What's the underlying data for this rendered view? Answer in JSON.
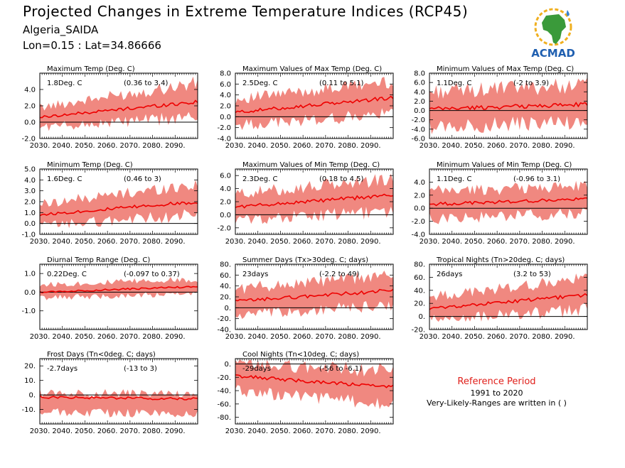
{
  "header": {
    "title": "Projected Changes in Extreme Temperature Indices (RCP45)",
    "station": "Algeria_SAIDA",
    "coords": "Lon=0.15 : Lat=34.86666"
  },
  "logo": {
    "text": "ACMAD",
    "icon": "africa-map-logo-icon"
  },
  "reference": {
    "title": "Reference Period",
    "years": "1991 to 2020",
    "note": "Very-Likely-Ranges are written in ( )"
  },
  "colors": {
    "band": "#f08880",
    "line": "#ee0000",
    "zero": "#000000",
    "ref_title": "#e0201b"
  },
  "chart_data": [
    {
      "id": "txx-mean",
      "type": "area",
      "title": "Maximum Temp (Deg. C)",
      "change": "1.8Deg. C",
      "range": "(0.36 to 3.4)",
      "x_range": [
        2030,
        2100
      ],
      "x_ticks": [
        "2030.",
        "2040.",
        "2050.",
        "2060.",
        "2070.",
        "2080.",
        "2090."
      ],
      "ylim": [
        -2,
        6
      ],
      "y_ticks": [
        "-2.0",
        "0.0",
        "2.0",
        "4.0"
      ],
      "mean_start": 0.6,
      "mean_end": 2.5,
      "band_start": [
        -0.6,
        1.8
      ],
      "band_end": [
        0.6,
        4.8
      ]
    },
    {
      "id": "txx",
      "type": "area",
      "title": "Maximum Values of Max Temp (Deg. C)",
      "change": "2.5Deg. C",
      "range": "(0.11 to 5.1)",
      "x_range": [
        2030,
        2100
      ],
      "x_ticks": [
        "2030.",
        "2040.",
        "2050.",
        "2060.",
        "2070.",
        "2080.",
        "2090."
      ],
      "ylim": [
        -4,
        8
      ],
      "y_ticks": [
        "-4.0",
        "-2.0",
        "0.0",
        "2.0",
        "4.0",
        "6.0",
        "8.0"
      ],
      "mean_start": 0.8,
      "mean_end": 3.5,
      "band_start": [
        -1.6,
        3.2
      ],
      "band_end": [
        0.5,
        6.5
      ]
    },
    {
      "id": "txn",
      "type": "area",
      "title": "Minimum Values of Max Temp (Deg. C)",
      "change": "1.1Deg. C",
      "range": "(-2 to 3.9)",
      "x_range": [
        2030,
        2100
      ],
      "x_ticks": [
        "2030.",
        "2040.",
        "2050.",
        "2060.",
        "2070.",
        "2080.",
        "2090."
      ],
      "ylim": [
        -6,
        8
      ],
      "y_ticks": [
        "-6.0",
        "-4.0",
        "-2.0",
        "0.0",
        "2.0",
        "4.0",
        "6.0",
        "8.0"
      ],
      "mean_start": 0.3,
      "mean_end": 1.3,
      "band_start": [
        -3.5,
        4.0
      ],
      "band_end": [
        -2.5,
        5.5
      ]
    },
    {
      "id": "tn-mean",
      "type": "area",
      "title": "Minimum Temp (Deg. C)",
      "change": "1.6Deg. C",
      "range": "(0.46 to 3)",
      "x_range": [
        2030,
        2100
      ],
      "x_ticks": [
        "2030.",
        "2040.",
        "2050.",
        "2060.",
        "2070.",
        "2080.",
        "2090."
      ],
      "ylim": [
        -1,
        5
      ],
      "y_ticks": [
        "-1.0",
        "0.0",
        "1.0",
        "2.0",
        "3.0",
        "4.0",
        "5.0"
      ],
      "mean_start": 0.8,
      "mean_end": 2.0,
      "band_start": [
        -0.2,
        1.8
      ],
      "band_end": [
        0.8,
        3.6
      ]
    },
    {
      "id": "tnx",
      "type": "area",
      "title": "Maximum Values of Min Temp (Deg. C)",
      "change": "2.3Deg. C",
      "range": "(0.18 to 4.5)",
      "x_range": [
        2030,
        2100
      ],
      "x_ticks": [
        "2030.",
        "2040.",
        "2050.",
        "2060.",
        "2070.",
        "2080.",
        "2090."
      ],
      "ylim": [
        -3,
        7
      ],
      "y_ticks": [
        "-2.0",
        "0.0",
        "2.0",
        "4.0",
        "6.0"
      ],
      "mean_start": 1.2,
      "mean_end": 3.0,
      "band_start": [
        -0.8,
        3.2
      ],
      "band_end": [
        0.5,
        5.5
      ]
    },
    {
      "id": "tnn",
      "type": "area",
      "title": "Minimum Values of Min Temp (Deg. C)",
      "change": "1.1Deg. C",
      "range": "(-0.96 to 3.1)",
      "x_range": [
        2030,
        2100
      ],
      "x_ticks": [
        "2030.",
        "2040.",
        "2050.",
        "2060.",
        "2070.",
        "2080.",
        "2090."
      ],
      "ylim": [
        -4,
        6
      ],
      "y_ticks": [
        "-4.0",
        "-2.0",
        "0.0",
        "2.0",
        "4.0"
      ],
      "mean_start": 0.6,
      "mean_end": 1.4,
      "band_start": [
        -1.6,
        2.6
      ],
      "band_end": [
        -0.8,
        3.4
      ]
    },
    {
      "id": "dtr",
      "type": "area",
      "title": "Diurnal Temp Range (Deg. C)",
      "change": "0.22Deg. C",
      "range": "(-0.097 to 0.37)",
      "x_range": [
        2030,
        2100
      ],
      "x_ticks": [
        "2030.",
        "2040.",
        "2050.",
        "2060.",
        "2070.",
        "2080.",
        "2090."
      ],
      "ylim": [
        -2,
        1.5
      ],
      "y_ticks": [
        "-1.0",
        "0.0",
        "1.0"
      ],
      "mean_start": 0.0,
      "mean_end": 0.3,
      "band_start": [
        -0.3,
        0.4
      ],
      "band_end": [
        -0.1,
        0.7
      ]
    },
    {
      "id": "su",
      "type": "area",
      "title": "Summer Days (Tx>30deg. C; days)",
      "change": "23days",
      "range": "(-2.2 to 49)",
      "x_range": [
        2030,
        2100
      ],
      "x_ticks": [
        "2030.",
        "2040.",
        "2050.",
        "2060.",
        "2070.",
        "2080.",
        "2090."
      ],
      "ylim": [
        -40,
        80
      ],
      "y_ticks": [
        "-40.",
        "-20.",
        "0.",
        "20.",
        "40.",
        "60.",
        "80."
      ],
      "mean_start": 12,
      "mean_end": 32,
      "band_start": [
        -15,
        35
      ],
      "band_end": [
        5,
        60
      ]
    },
    {
      "id": "tr",
      "type": "area",
      "title": "Tropical Nights (Tn>20deg. C; days)",
      "change": "26days",
      "range": "(3.2 to 53)",
      "x_range": [
        2030,
        2100
      ],
      "x_ticks": [
        "2030.",
        "2040.",
        "2050.",
        "2060.",
        "2070.",
        "2080.",
        "2090."
      ],
      "ylim": [
        -20,
        80
      ],
      "y_ticks": [
        "-20.",
        "0.",
        "20.",
        "40.",
        "60.",
        "80."
      ],
      "mean_start": 12,
      "mean_end": 33,
      "band_start": [
        -5,
        30
      ],
      "band_end": [
        10,
        58
      ]
    },
    {
      "id": "fd",
      "type": "area",
      "title": "Frost Days (Tn<0deg. C; days)",
      "change": "-2.7days",
      "range": "(-13 to 3)",
      "x_range": [
        2030,
        2100
      ],
      "x_ticks": [
        "2030.",
        "2040.",
        "2050.",
        "2060.",
        "2070.",
        "2080.",
        "2090."
      ],
      "ylim": [
        -20,
        25
      ],
      "y_ticks": [
        "-10.",
        "0.",
        "10.",
        "20."
      ],
      "mean_start": -1.5,
      "mean_end": -2.8,
      "band_start": [
        -12,
        1.5
      ],
      "band_end": [
        -13,
        0.5
      ]
    },
    {
      "id": "cn",
      "type": "area",
      "title": "Cool Nights (Tn<10deg. C; days)",
      "change": "-29days",
      "range": "(-56 to -6.1)",
      "x_range": [
        2030,
        2100
      ],
      "x_ticks": [
        "2030.",
        "2040.",
        "2050.",
        "2060.",
        "2070.",
        "2080.",
        "2090."
      ],
      "ylim": [
        -90,
        8
      ],
      "y_ticks": [
        "0.",
        "-20.",
        "-40.",
        "-60.",
        "-80."
      ],
      "mean_start": -18,
      "mean_end": -35,
      "band_start": [
        -40,
        0
      ],
      "band_end": [
        -62,
        -10
      ]
    }
  ]
}
